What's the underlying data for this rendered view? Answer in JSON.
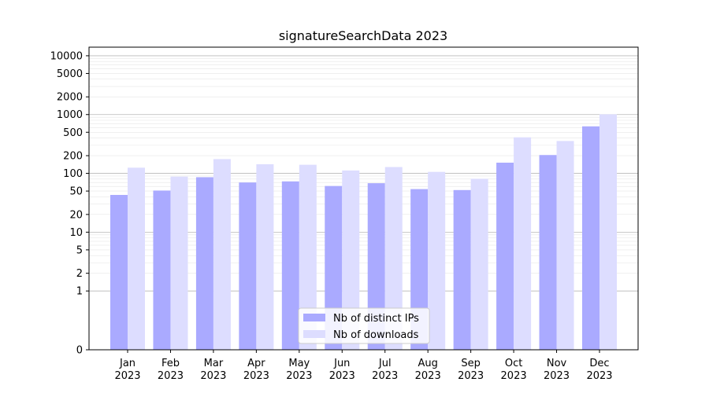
{
  "chart_data": {
    "type": "bar",
    "title": "signatureSearchData 2023",
    "xlabel": "",
    "ylabel": "",
    "yscale": "symlog",
    "ylim": [
      0,
      14000
    ],
    "y_ticks": [
      0,
      1,
      2,
      5,
      10,
      20,
      50,
      100,
      200,
      500,
      1000,
      2000,
      5000,
      10000
    ],
    "categories": [
      [
        "Jan",
        "2023"
      ],
      [
        "Feb",
        "2023"
      ],
      [
        "Mar",
        "2023"
      ],
      [
        "Apr",
        "2023"
      ],
      [
        "May",
        "2023"
      ],
      [
        "Jun",
        "2023"
      ],
      [
        "Jul",
        "2023"
      ],
      [
        "Aug",
        "2023"
      ],
      [
        "Sep",
        "2023"
      ],
      [
        "Oct",
        "2023"
      ],
      [
        "Nov",
        "2023"
      ],
      [
        "Dec",
        "2023"
      ]
    ],
    "series": [
      {
        "name": "Nb of distinct IPs",
        "color": "#aaaaff",
        "values": [
          43,
          51,
          86,
          70,
          73,
          61,
          68,
          54,
          52,
          152,
          205,
          630
        ]
      },
      {
        "name": "Nb of downloads",
        "color": "#ddddff",
        "values": [
          125,
          88,
          175,
          143,
          140,
          112,
          128,
          106,
          81,
          410,
          355,
          1010
        ]
      }
    ],
    "grid": true,
    "legend_position": "bottom-center"
  }
}
